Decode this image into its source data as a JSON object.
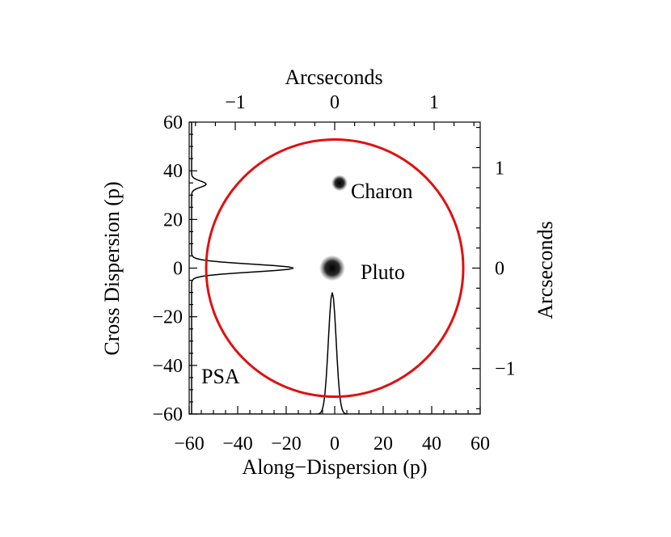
{
  "chart_data": {
    "type": "scatter",
    "xlabel": "Along−Dispersion (p)",
    "ylabel": "Cross Dispersion (p)",
    "top_axis_label": "Arcseconds",
    "right_axis_label": "Arcseconds",
    "xlim": [
      -60,
      60
    ],
    "ylim": [
      -60,
      60
    ],
    "x_ticks": [
      {
        "value": -60,
        "label": "−60"
      },
      {
        "value": -40,
        "label": "−40"
      },
      {
        "value": -20,
        "label": "−20"
      },
      {
        "value": 0,
        "label": "0"
      },
      {
        "value": 20,
        "label": "20"
      },
      {
        "value": 40,
        "label": "40"
      },
      {
        "value": 60,
        "label": "60"
      }
    ],
    "y_ticks": [
      {
        "value": -60,
        "label": "−60"
      },
      {
        "value": -40,
        "label": "−40"
      },
      {
        "value": -20,
        "label": "−20"
      },
      {
        "value": 0,
        "label": "0"
      },
      {
        "value": 20,
        "label": "20"
      },
      {
        "value": 40,
        "label": "40"
      },
      {
        "value": 60,
        "label": "60"
      }
    ],
    "top_ticks": [
      {
        "value": -1,
        "label": "−1"
      },
      {
        "value": 0,
        "label": "0"
      },
      {
        "value": 1,
        "label": "1"
      }
    ],
    "right_ticks": [
      {
        "value": 1,
        "label": "1"
      },
      {
        "value": 0,
        "label": "0"
      },
      {
        "value": -1,
        "label": "−1"
      }
    ],
    "pixels_per_arcsec": 41,
    "objects": [
      {
        "name": "Pluto",
        "x": -1,
        "y": 0
      },
      {
        "name": "Charon",
        "x": 2,
        "y": 35
      }
    ],
    "aperture": {
      "label": "PSA",
      "center": [
        0,
        0
      ],
      "radius": 53,
      "color": "#e01010"
    },
    "label_color": "#0000ee"
  }
}
